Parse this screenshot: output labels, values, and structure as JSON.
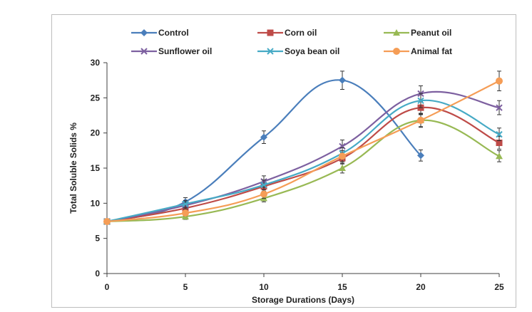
{
  "chart_data": {
    "type": "line",
    "xlabel": "Storage Durations (Days)",
    "ylabel": "Total Soluble Solids %",
    "x": [
      0,
      5,
      10,
      15,
      20,
      25
    ],
    "xlim": [
      0,
      25
    ],
    "ylim": [
      0,
      30
    ],
    "xticks": [
      0,
      5,
      10,
      15,
      20,
      25
    ],
    "yticks": [
      0,
      5,
      10,
      15,
      20,
      25,
      30
    ],
    "grid": false,
    "legend_position": "top",
    "series": [
      {
        "name": "Control",
        "color": "#4a7ebb",
        "marker": "diamond",
        "x": [
          0,
          5,
          10,
          15,
          20
        ],
        "values": [
          7.4,
          10.2,
          19.4,
          27.5,
          16.8
        ],
        "errors": [
          0.3,
          0.6,
          0.9,
          1.3,
          0.8
        ]
      },
      {
        "name": "Corn oil",
        "color": "#be4b48",
        "marker": "square",
        "x": [
          0,
          5,
          10,
          15,
          20,
          25
        ],
        "values": [
          7.4,
          9.3,
          12.4,
          16.4,
          23.6,
          18.6
        ],
        "errors": [
          0.3,
          0.5,
          0.7,
          0.8,
          1.0,
          0.9
        ]
      },
      {
        "name": "Peanut oil",
        "color": "#98b954",
        "marker": "triangle",
        "x": [
          0,
          5,
          10,
          15,
          20,
          25
        ],
        "values": [
          7.4,
          8.1,
          10.7,
          15.0,
          21.8,
          16.7
        ],
        "errors": [
          0.3,
          0.4,
          0.5,
          0.7,
          0.9,
          0.8
        ]
      },
      {
        "name": "Sunflower oil",
        "color": "#7d60a0",
        "marker": "x",
        "x": [
          0,
          5,
          10,
          15,
          20,
          25
        ],
        "values": [
          7.4,
          9.7,
          13.1,
          18.1,
          25.6,
          23.6
        ],
        "errors": [
          0.3,
          0.5,
          0.8,
          0.9,
          1.1,
          1.0
        ]
      },
      {
        "name": "Soya bean oil",
        "color": "#46aac5",
        "marker": "x",
        "x": [
          0,
          5,
          10,
          15,
          20,
          25
        ],
        "values": [
          7.4,
          9.9,
          12.6,
          17.1,
          24.6,
          19.8
        ],
        "errors": [
          0.3,
          0.5,
          0.7,
          0.8,
          1.0,
          0.9
        ]
      },
      {
        "name": "Animal fat",
        "color": "#f59d56",
        "marker": "circle",
        "x": [
          0,
          5,
          10,
          15,
          20,
          25
        ],
        "values": [
          7.4,
          8.6,
          11.3,
          16.7,
          21.8,
          27.4
        ],
        "errors": [
          0.3,
          0.4,
          0.6,
          0.8,
          1.0,
          1.4
        ]
      }
    ]
  }
}
